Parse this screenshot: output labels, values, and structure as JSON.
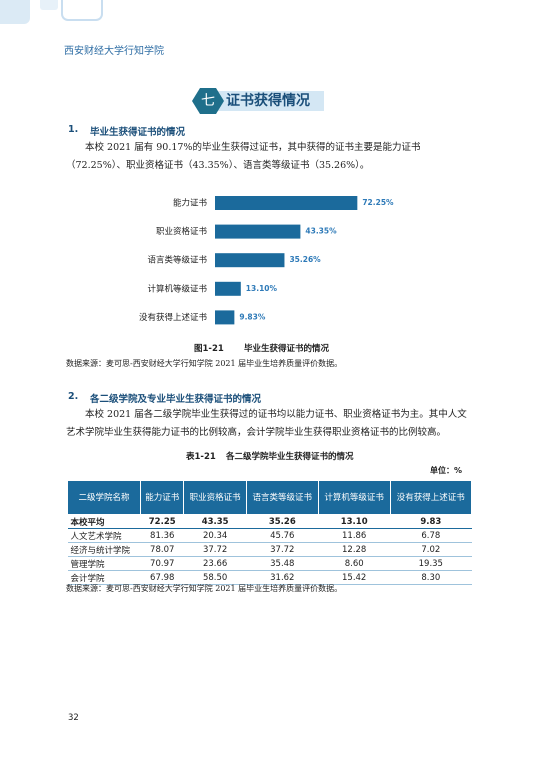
{
  "header": {
    "school": "西安财经大学行知学院"
  },
  "section": {
    "number": "七",
    "title": "证书获得情况"
  },
  "part1": {
    "number": "1.",
    "title": "毕业生获得证书的情况",
    "paragraph": "本校 2021 届有 90.17%的毕业生获得过证书，其中获得的证书主要是能力证书（72.25%）、职业资格证书（43.35%）、语言类等级证书（35.26%）。"
  },
  "chart_data": {
    "type": "bar",
    "orientation": "horizontal",
    "categories": [
      "能力证书",
      "职业资格证书",
      "语言类等级证书",
      "计算机等级证书",
      "没有获得上述证书"
    ],
    "values": [
      72.25,
      43.35,
      35.26,
      13.1,
      9.83
    ],
    "value_labels": [
      "72.25%",
      "43.35%",
      "35.26%",
      "13.10%",
      "9.83%"
    ],
    "color": "#1b6a9c",
    "caption_number": "图1-21",
    "caption": "毕业生获得证书的情况",
    "source": "数据来源：麦可思-西安财经大学行知学院 2021 届毕业生培养质量评价数据。"
  },
  "part2": {
    "number": "2.",
    "title": "各二级学院及专业毕业生获得证书的情况",
    "paragraph": "本校 2021 届各二级学院毕业生获得过的证书均以能力证书、职业资格证书为主。其中人文艺术学院毕业生获得能力证书的比例较高，会计学院毕业生获得职业资格证书的比例较高。"
  },
  "table": {
    "caption_number": "表1-21",
    "caption": "各二级学院毕业生获得证书的情况",
    "unit": "单位：%",
    "headers": [
      "二级学院名称",
      "能力证书",
      "职业资格证书",
      "语言类等级证书",
      "计算机等级证书",
      "没有获得上述证书"
    ],
    "rows": [
      [
        "本校平均",
        "72.25",
        "43.35",
        "35.26",
        "13.10",
        "9.83"
      ],
      [
        "人文艺术学院",
        "81.36",
        "20.34",
        "45.76",
        "11.86",
        "6.78"
      ],
      [
        "经济与统计学院",
        "78.07",
        "37.72",
        "37.72",
        "12.28",
        "7.02"
      ],
      [
        "管理学院",
        "70.97",
        "23.66",
        "35.48",
        "8.60",
        "19.35"
      ],
      [
        "会计学院",
        "67.98",
        "58.50",
        "31.62",
        "15.42",
        "8.30"
      ]
    ],
    "source": "数据来源：麦可思-西安财经大学行知学院 2021 届毕业生培养质量评价数据。"
  },
  "footer": {
    "page": "32"
  }
}
